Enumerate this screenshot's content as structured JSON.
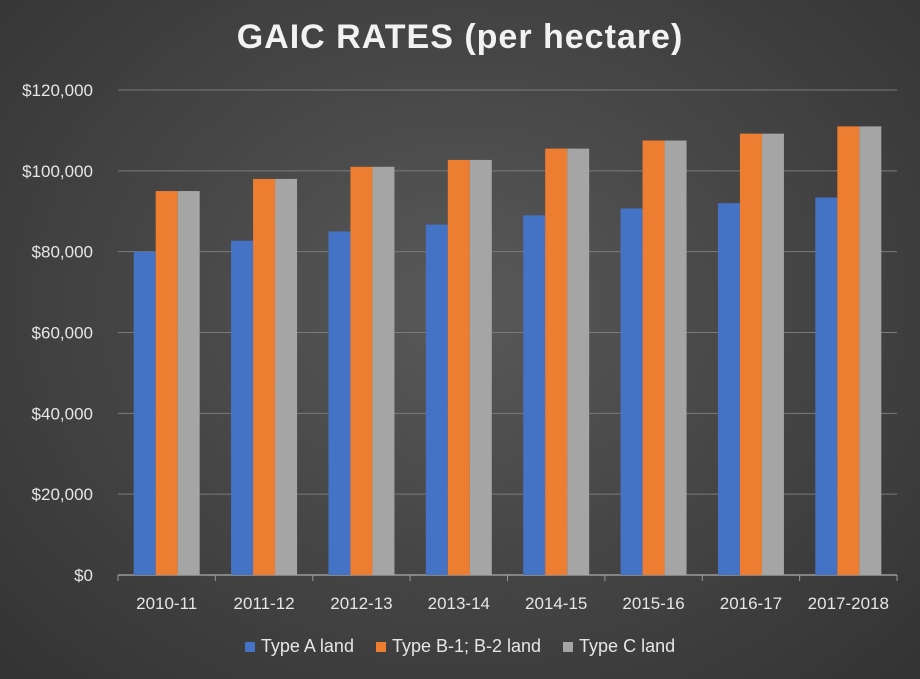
{
  "chart_data": {
    "type": "bar",
    "title": "GAIC RATES (per hectare)",
    "xlabel": "",
    "ylabel": "",
    "categories": [
      "2010-11",
      "2011-12",
      "2012-13",
      "2013-14",
      "2014-15",
      "2015-16",
      "2016-17",
      "2017-2018"
    ],
    "series": [
      {
        "name": "Type A land",
        "color": "#4472c4",
        "values": [
          80000,
          82700,
          85000,
          86700,
          89000,
          90700,
          92000,
          93400
        ]
      },
      {
        "name": "Type B-1; B-2 land",
        "color": "#ed7d31",
        "values": [
          95000,
          98000,
          101000,
          102700,
          105500,
          107500,
          109200,
          111000
        ]
      },
      {
        "name": "Type C land",
        "color": "#a5a5a5",
        "values": [
          95000,
          98000,
          101000,
          102700,
          105500,
          107500,
          109200,
          111000
        ]
      }
    ],
    "ylim": [
      0,
      120000
    ],
    "yticks": [
      0,
      20000,
      40000,
      60000,
      80000,
      100000,
      120000
    ],
    "ytick_labels": [
      "$0",
      "$20,000",
      "$40,000",
      "$60,000",
      "$80,000",
      "$100,000",
      "$120,000"
    ],
    "grid": true,
    "legend_position": "bottom"
  }
}
